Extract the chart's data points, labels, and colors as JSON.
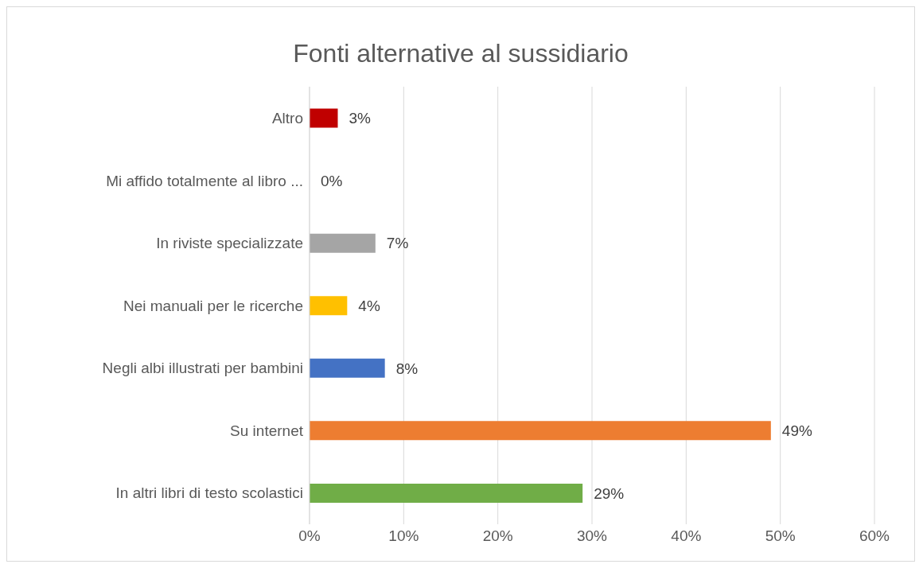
{
  "chart_data": {
    "type": "bar",
    "orientation": "horizontal",
    "title": "Fonti alternative al sussidiario",
    "categories": [
      "Altro",
      "Mi affido totalmente al libro ...",
      "In riviste specializzate",
      "Nei manuali per le ricerche",
      "Negli albi illustrati per bambini",
      "Su internet",
      "In altri libri di testo scolastici"
    ],
    "values": [
      3,
      0,
      7,
      4,
      8,
      49,
      29
    ],
    "colors": [
      "#c00000",
      "#5b9bd5",
      "#a5a5a5",
      "#ffc000",
      "#4472c4",
      "#ed7d31",
      "#70ad47"
    ],
    "value_labels": [
      "3%",
      "0%",
      "7%",
      "4%",
      "8%",
      "49%",
      "29%"
    ],
    "xlim": [
      0,
      60
    ],
    "xticks": [
      {
        "value": 0,
        "label": "0%"
      },
      {
        "value": 10,
        "label": "10%"
      },
      {
        "value": 20,
        "label": "20%"
      },
      {
        "value": 30,
        "label": "30%"
      },
      {
        "value": 40,
        "label": "40%"
      },
      {
        "value": 50,
        "label": "50%"
      },
      {
        "value": 60,
        "label": "60%"
      }
    ],
    "grid": "x",
    "legend": false
  }
}
